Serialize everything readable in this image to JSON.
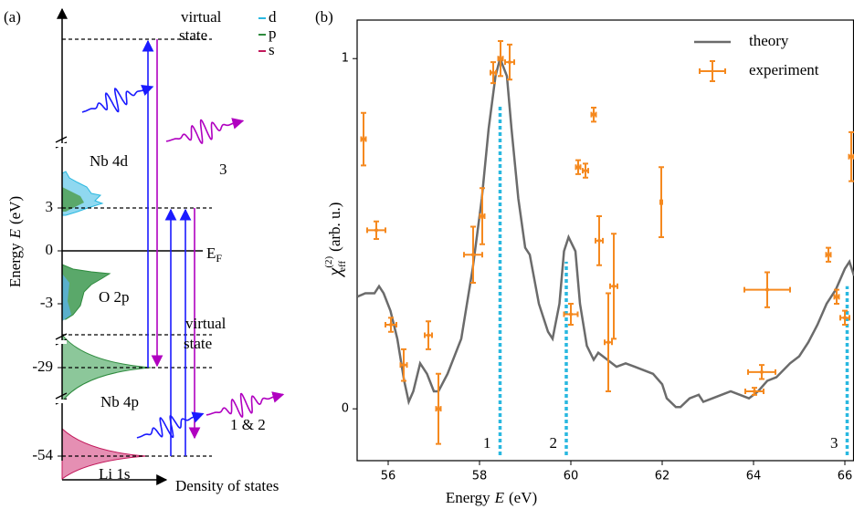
{
  "chart_data": [
    {
      "type": "energy-diagram",
      "panel_label": "(a)",
      "y_label": {
        "text": "Energy",
        "symbol": "E",
        "unit": "(eV)"
      },
      "x_label": "Density of states",
      "yticks": [
        3,
        0,
        -3,
        -29,
        -54
      ],
      "fermi_label": {
        "symbol": "E",
        "sub": "F"
      },
      "virtual_state_labels": [
        [
          "virtual",
          "state"
        ],
        [
          "virtual",
          "state"
        ]
      ],
      "band_labels": [
        {
          "text": "Nb 4d",
          "color": "#29b8e0"
        },
        {
          "text": "O 2p",
          "color": "#2e8b3e"
        },
        {
          "text": "Nb 4p",
          "color": "#2e8b3e"
        },
        {
          "text": "Li 1s",
          "color": "#c2185b"
        }
      ],
      "transition_labels": [
        {
          "text": "3",
          "color": "#29b8e0"
        },
        {
          "text": "1 & 2",
          "color": "#29b8e0"
        }
      ],
      "legend": [
        {
          "name": "d",
          "color": "#29b8e0"
        },
        {
          "name": "p",
          "color": "#2e8b3e"
        },
        {
          "name": "s",
          "color": "#c2185b"
        }
      ]
    },
    {
      "type": "line-errorbar",
      "panel_label": "(b)",
      "x_label": {
        "text": "Energy",
        "symbol": "E",
        "unit": "(eV)"
      },
      "y_label": {
        "symbol": "χ",
        "sub": "eff",
        "sup": "(2)",
        "unit": "(arb. u.)"
      },
      "xlim": [
        55.32,
        66.2
      ],
      "ylim": [
        -0.148,
        1.11
      ],
      "xticks": [
        56,
        58,
        60,
        62,
        64,
        66
      ],
      "yticks": [
        0,
        1
      ],
      "legend_position": "upper right",
      "series": [
        {
          "name": "theory",
          "type": "line",
          "color": "#6b6b6b",
          "x": [
            55.32,
            55.5,
            55.7,
            55.8,
            55.9,
            56.05,
            56.2,
            56.35,
            56.45,
            56.55,
            56.7,
            56.85,
            57.0,
            57.1,
            57.3,
            57.6,
            57.85,
            58.05,
            58.2,
            58.35,
            58.45,
            58.6,
            58.7,
            58.85,
            59.0,
            59.1,
            59.3,
            59.5,
            59.6,
            59.75,
            59.85,
            59.95,
            60.1,
            60.2,
            60.35,
            60.5,
            60.6,
            60.8,
            61.0,
            61.2,
            61.4,
            61.6,
            61.8,
            62.0,
            62.1,
            62.3,
            62.4,
            62.6,
            62.8,
            62.9,
            63.1,
            63.3,
            63.5,
            63.7,
            63.9,
            64.1,
            64.3,
            64.5,
            64.8,
            65.0,
            65.2,
            65.4,
            65.6,
            65.8,
            66.0,
            66.1,
            66.2
          ],
          "values": [
            0.32,
            0.33,
            0.33,
            0.35,
            0.33,
            0.28,
            0.2,
            0.08,
            0.02,
            0.05,
            0.13,
            0.1,
            0.05,
            0.05,
            0.1,
            0.2,
            0.4,
            0.6,
            0.8,
            0.95,
            1.0,
            0.95,
            0.8,
            0.6,
            0.46,
            0.44,
            0.3,
            0.22,
            0.2,
            0.3,
            0.45,
            0.49,
            0.45,
            0.3,
            0.18,
            0.14,
            0.16,
            0.14,
            0.12,
            0.13,
            0.12,
            0.11,
            0.1,
            0.07,
            0.03,
            0.005,
            0.005,
            0.03,
            0.04,
            0.02,
            0.03,
            0.04,
            0.05,
            0.04,
            0.03,
            0.05,
            0.08,
            0.09,
            0.13,
            0.15,
            0.19,
            0.24,
            0.3,
            0.34,
            0.4,
            0.42,
            0.38
          ]
        },
        {
          "name": "experiment",
          "type": "errorbar",
          "color": "#f5891f",
          "x": [
            55.46,
            55.74,
            56.06,
            56.34,
            56.88,
            57.1,
            57.86,
            58.06,
            58.3,
            58.46,
            58.66,
            60.0,
            60.16,
            60.32,
            60.5,
            60.62,
            60.82,
            60.94,
            61.98,
            64.02,
            64.18,
            64.3,
            65.64,
            65.82,
            66.0,
            66.14
          ],
          "values": [
            0.77,
            0.51,
            0.24,
            0.125,
            0.21,
            0.0,
            0.44,
            0.55,
            0.96,
            1.0,
            0.99,
            0.27,
            0.69,
            0.68,
            0.84,
            0.48,
            0.19,
            0.35,
            0.59,
            0.05,
            0.105,
            0.34,
            0.44,
            0.32,
            0.26,
            0.72
          ],
          "xerr": [
            0.05,
            0.2,
            0.12,
            0.07,
            0.08,
            0.05,
            0.2,
            0.05,
            0.06,
            0.05,
            0.1,
            0.15,
            0.05,
            0.06,
            0.05,
            0.08,
            0.08,
            0.08,
            0.02,
            0.2,
            0.3,
            0.5,
            0.05,
            0.05,
            0.1,
            0.05
          ],
          "yerr": [
            0.075,
            0.025,
            0.02,
            0.045,
            0.04,
            0.1,
            0.08,
            0.08,
            0.03,
            0.05,
            0.05,
            0.03,
            0.02,
            0.02,
            0.02,
            0.07,
            0.14,
            0.15,
            0.1,
            0.01,
            0.02,
            0.05,
            0.02,
            0.02,
            0.02,
            0.07
          ]
        }
      ],
      "markers": [
        {
          "x": 58.45,
          "top": 0.87,
          "label": "1",
          "color": "#29b8e0"
        },
        {
          "x": 59.9,
          "top": 0.42,
          "label": "2",
          "color": "#29b8e0"
        },
        {
          "x": 66.05,
          "top": 0.35,
          "label": "3",
          "color": "#29b8e0"
        }
      ]
    }
  ]
}
